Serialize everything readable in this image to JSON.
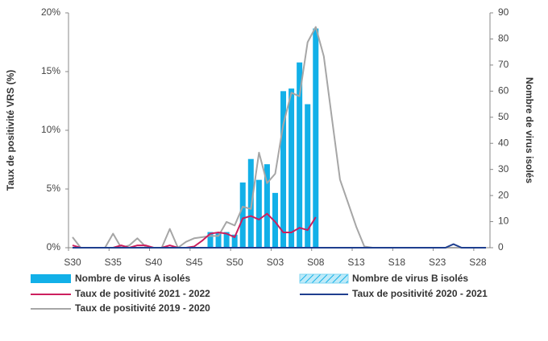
{
  "chart_data": {
    "type": "bar-line",
    "y_label": "Taux de positivité VRS (%)",
    "y2_label": "Nombre de virus isolés",
    "categories": [
      "S30",
      null,
      null,
      null,
      null,
      "S35",
      null,
      null,
      null,
      null,
      "S40",
      null,
      null,
      null,
      null,
      "S45",
      null,
      null,
      null,
      null,
      "S50",
      null,
      null,
      null,
      null,
      "S03",
      null,
      null,
      null,
      null,
      "S08",
      null,
      null,
      null,
      null,
      "S13",
      null,
      null,
      null,
      null,
      "S18",
      null,
      null,
      null,
      null,
      "S23",
      null,
      null,
      null,
      null,
      "S28",
      null
    ],
    "ylim": [
      0,
      20
    ],
    "yticks": [
      {
        "value": 0,
        "label": "0%"
      },
      {
        "value": 5,
        "label": "5%"
      },
      {
        "value": 10,
        "label": "10%"
      },
      {
        "value": 15,
        "label": "15%"
      },
      {
        "value": 20,
        "label": "20%"
      }
    ],
    "y2lim": [
      0,
      90
    ],
    "y2ticks": [
      0,
      10,
      20,
      30,
      40,
      50,
      60,
      70,
      80,
      90
    ],
    "series": [
      {
        "name": "Nombre de virus A isolés",
        "type": "bar",
        "axis": "y2",
        "color": "#12b0e8",
        "values": [
          0,
          0,
          0,
          0,
          0,
          0,
          0,
          0,
          0,
          0,
          0,
          0,
          0,
          0,
          0,
          0,
          0,
          6,
          6,
          6,
          5,
          25,
          34,
          26,
          32,
          21,
          60,
          61,
          71,
          55,
          84,
          0,
          0,
          0,
          0,
          0,
          0,
          0,
          0,
          0,
          0,
          0,
          0,
          0,
          0,
          0,
          0,
          0,
          0,
          0,
          0,
          0
        ]
      },
      {
        "name": "Nombre de virus B isolés",
        "type": "bar",
        "axis": "y2",
        "color": "#7fd6f2",
        "values": [
          0,
          0,
          0,
          0,
          0,
          0,
          0,
          0,
          0,
          0,
          0,
          0,
          0,
          0,
          0,
          0,
          0,
          0,
          0,
          0,
          0,
          0,
          0,
          0,
          0,
          0,
          0,
          0,
          0,
          0,
          0,
          0,
          0,
          0,
          0,
          0,
          0,
          0,
          0,
          0,
          0,
          0,
          0,
          0,
          0,
          0,
          0,
          0,
          0,
          0,
          0,
          0
        ]
      },
      {
        "name": "Taux de positivité 2021 - 2022",
        "type": "line",
        "color": "#cc1f5e",
        "values": [
          0.2,
          0,
          0,
          0,
          0,
          0,
          0.2,
          0,
          0.2,
          0.2,
          0,
          0,
          0.2,
          0,
          0,
          0.1,
          0.6,
          1.2,
          1.3,
          1.2,
          0.9,
          2.5,
          2.7,
          2.4,
          2.9,
          2.2,
          1.3,
          1.3,
          1.7,
          1.5,
          2.6,
          null,
          null,
          null,
          null,
          null,
          null,
          null,
          null,
          null,
          null,
          null,
          null,
          null,
          null,
          null,
          null,
          null,
          null,
          null,
          null,
          null
        ]
      },
      {
        "name": "Taux de positivité 2020 - 2021",
        "type": "line",
        "color": "#1f3f8f",
        "values": [
          0,
          0,
          0,
          0,
          0,
          0,
          0,
          0,
          0,
          0,
          0,
          0,
          0,
          0,
          0,
          0,
          0,
          0,
          0,
          0,
          0,
          0,
          0,
          0,
          0,
          0,
          0,
          0,
          0,
          0,
          0,
          0,
          0,
          0,
          0,
          0,
          0,
          0,
          0,
          0,
          0,
          0,
          0,
          0,
          0,
          0,
          0,
          0.3,
          0,
          0,
          0,
          0
        ]
      },
      {
        "name": "Taux de positivité 2019 - 2020",
        "type": "line",
        "color": "#a6a6a6",
        "values": [
          0.9,
          0,
          0,
          0,
          0,
          1.2,
          0,
          0.2,
          0.8,
          0.1,
          0,
          0,
          1.6,
          0,
          0.5,
          0.8,
          0.9,
          1.0,
          1.0,
          2.2,
          1.9,
          3.5,
          3.3,
          8.1,
          5.5,
          6.3,
          10.5,
          13.2,
          12.9,
          17.5,
          18.8,
          16.3,
          11,
          5.8,
          3.8,
          1.8,
          0.1,
          0,
          0,
          0,
          0,
          0,
          0,
          0,
          0,
          0,
          0,
          0,
          0,
          0,
          0,
          0
        ]
      }
    ]
  }
}
